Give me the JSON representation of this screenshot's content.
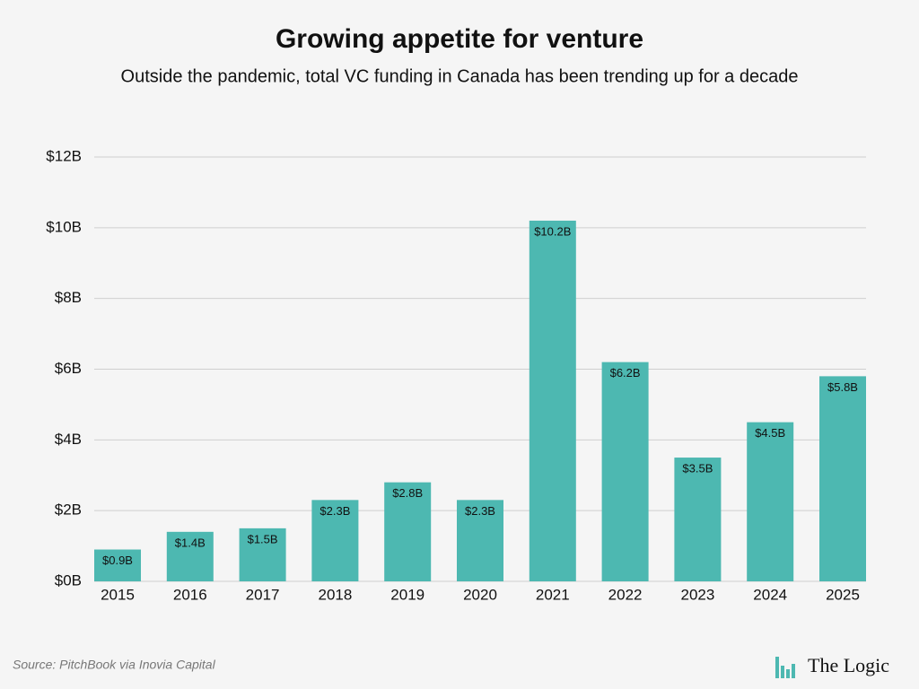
{
  "chart_data": {
    "type": "bar",
    "title": "Growing appetite for venture",
    "subtitle": "Outside the pandemic, total VC funding in Canada has been trending up for a decade",
    "categories": [
      "2015",
      "2016",
      "2017",
      "2018",
      "2019",
      "2020",
      "2021",
      "2022",
      "2023",
      "2024",
      "2025"
    ],
    "values": [
      0.9,
      1.4,
      1.5,
      2.3,
      2.8,
      2.3,
      10.2,
      6.2,
      3.5,
      4.5,
      5.8
    ],
    "value_labels": [
      "$0.9B",
      "$1.4B",
      "$1.5B",
      "$2.3B",
      "$2.8B",
      "$2.3B",
      "$10.2B",
      "$6.2B",
      "$3.5B",
      "$4.5B",
      "$5.8B"
    ],
    "color": "#4db8b1",
    "ylim": [
      0,
      12
    ],
    "yticks": [
      {
        "value": 0,
        "label": "$0B"
      },
      {
        "value": 2,
        "label": "$2B"
      },
      {
        "value": 4,
        "label": "$4B"
      },
      {
        "value": 6,
        "label": "$6B"
      },
      {
        "value": 8,
        "label": "$8B"
      },
      {
        "value": 10,
        "label": "$10B"
      },
      {
        "value": 12,
        "label": "$12B"
      }
    ],
    "grid": true,
    "source": "Source: PitchBook via Inovia Capital",
    "brand": "The Logic"
  }
}
